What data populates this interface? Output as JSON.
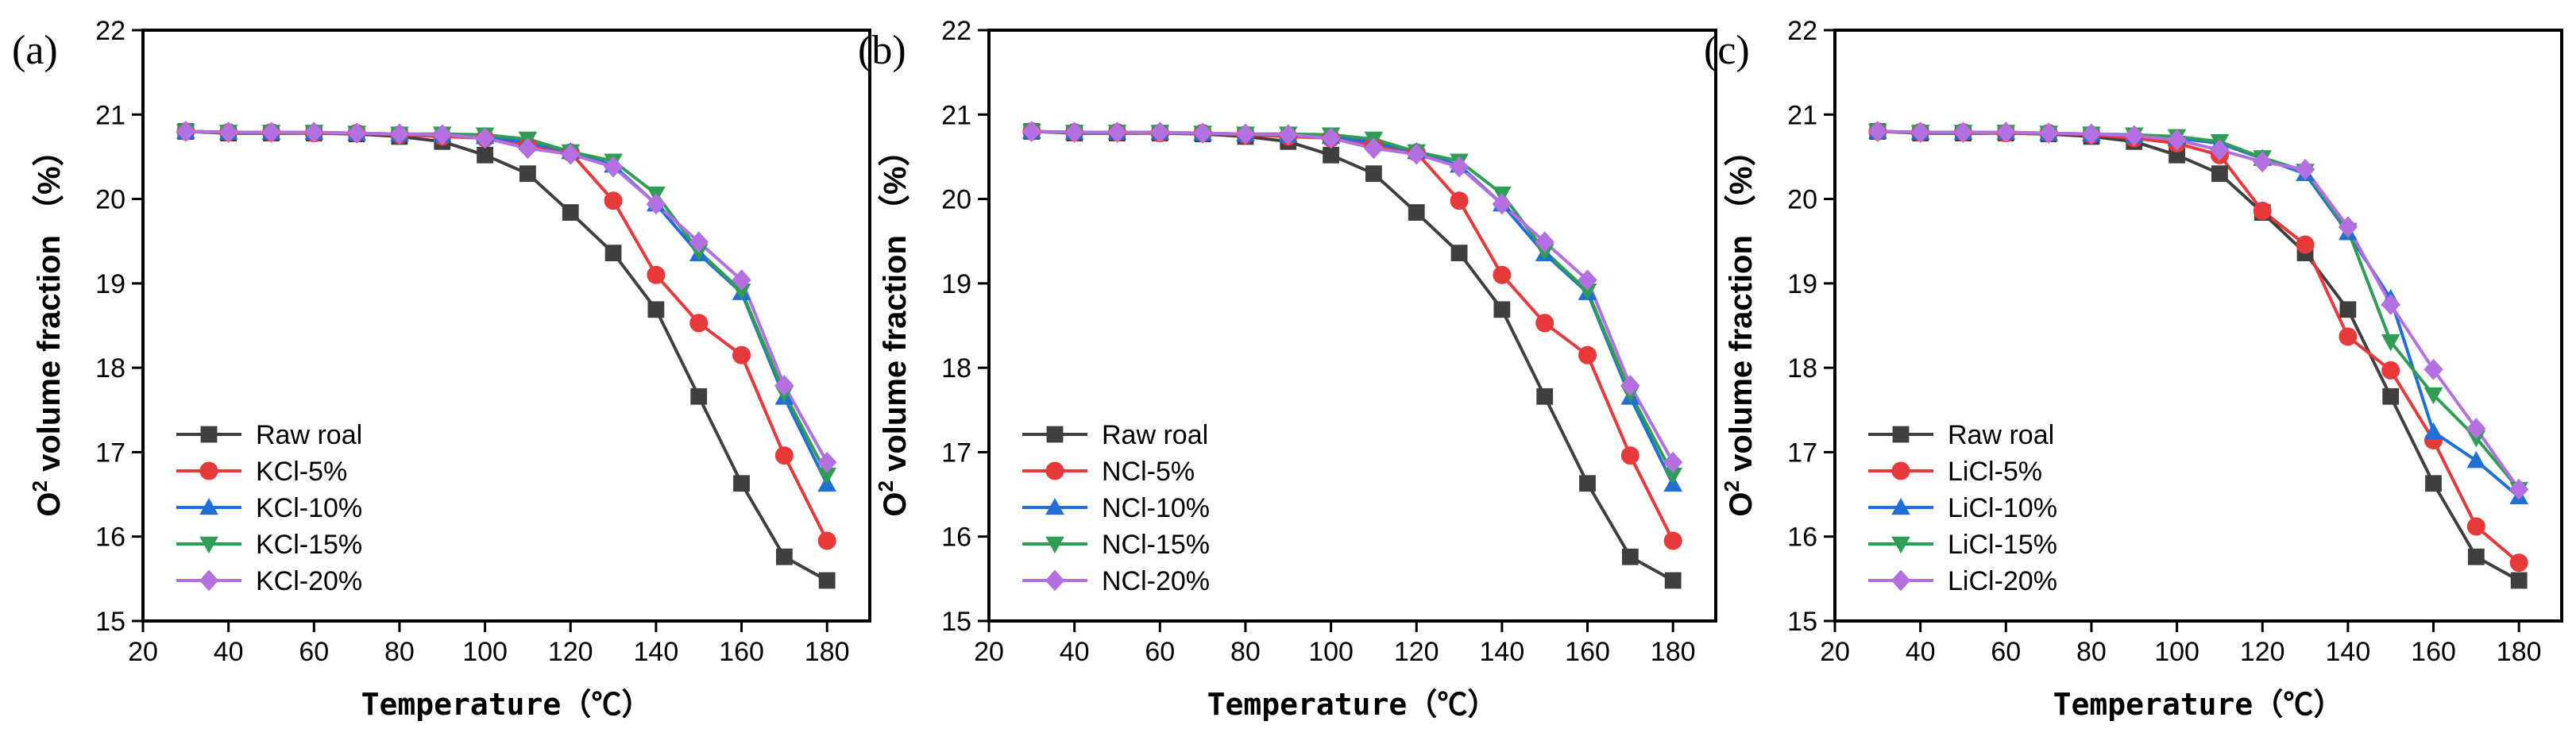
{
  "chart_data": [
    {
      "type": "line",
      "panel_label": "(a)",
      "xlabel": "Temperature（℃）",
      "ylabel_main": "O",
      "ylabel_sup": "2",
      "ylabel_rest": " volume fraction （%）",
      "xlim": [
        20,
        190
      ],
      "ylim": [
        15,
        22
      ],
      "xticks": [
        "20",
        "40",
        "60",
        "80",
        "100",
        "120",
        "140",
        "160",
        "180"
      ],
      "yticks": [
        "15",
        "16",
        "17",
        "18",
        "19",
        "20",
        "21",
        "22"
      ],
      "legend_position": "lower-left",
      "x": [
        30,
        40,
        50,
        60,
        70,
        80,
        90,
        100,
        110,
        120,
        130,
        140,
        150,
        160,
        170,
        180
      ],
      "series": [
        {
          "name": "Raw roal",
          "color": "#3f3f3f",
          "marker": "square",
          "values": [
            20.8,
            20.78,
            20.78,
            20.78,
            20.77,
            20.74,
            20.68,
            20.52,
            20.3,
            19.84,
            19.36,
            18.69,
            17.66,
            16.63,
            15.76,
            15.48
          ]
        },
        {
          "name": "KCl-5%",
          "color": "#e8393a",
          "marker": "circle",
          "values": [
            20.8,
            20.79,
            20.79,
            20.78,
            20.78,
            20.76,
            20.74,
            20.72,
            20.63,
            20.55,
            19.98,
            19.1,
            18.53,
            18.15,
            16.96,
            15.95
          ]
        },
        {
          "name": "KCl-10%",
          "color": "#1f6fd6",
          "marker": "triangle-up",
          "values": [
            20.8,
            20.79,
            20.79,
            20.79,
            20.78,
            20.77,
            20.76,
            20.74,
            20.67,
            20.56,
            20.4,
            19.94,
            19.35,
            18.89,
            17.65,
            16.62
          ]
        },
        {
          "name": "KCl-15%",
          "color": "#2e9e55",
          "marker": "triangle-down",
          "values": [
            20.8,
            20.79,
            20.79,
            20.79,
            20.78,
            20.77,
            20.77,
            20.76,
            20.71,
            20.56,
            20.45,
            20.06,
            19.38,
            18.91,
            17.7,
            16.73
          ]
        },
        {
          "name": "KCl-20%",
          "color": "#b46fe0",
          "marker": "diamond",
          "values": [
            20.8,
            20.79,
            20.79,
            20.79,
            20.78,
            20.77,
            20.76,
            20.72,
            20.6,
            20.53,
            20.38,
            19.94,
            19.49,
            19.04,
            17.79,
            16.88
          ]
        }
      ]
    },
    {
      "type": "line",
      "panel_label": "(b)",
      "xlabel": "Temperature（℃）",
      "ylabel_main": "O",
      "ylabel_sup": "2",
      "ylabel_rest": " volume fraction （%）",
      "xlim": [
        20,
        190
      ],
      "ylim": [
        15,
        22
      ],
      "xticks": [
        "20",
        "40",
        "60",
        "80",
        "100",
        "120",
        "140",
        "160",
        "180"
      ],
      "yticks": [
        "15",
        "16",
        "17",
        "18",
        "19",
        "20",
        "21",
        "22"
      ],
      "legend_position": "lower-left",
      "x": [
        30,
        40,
        50,
        60,
        70,
        80,
        90,
        100,
        110,
        120,
        130,
        140,
        150,
        160,
        170,
        180
      ],
      "series": [
        {
          "name": "Raw roal",
          "color": "#3f3f3f",
          "marker": "square",
          "values": [
            20.8,
            20.78,
            20.78,
            20.78,
            20.77,
            20.74,
            20.68,
            20.52,
            20.3,
            19.84,
            19.36,
            18.69,
            17.66,
            16.63,
            15.76,
            15.48
          ]
        },
        {
          "name": "NCl-5%",
          "color": "#e8393a",
          "marker": "circle",
          "values": [
            20.8,
            20.79,
            20.79,
            20.78,
            20.78,
            20.76,
            20.74,
            20.72,
            20.63,
            20.55,
            19.98,
            19.1,
            18.53,
            18.15,
            16.96,
            15.95
          ]
        },
        {
          "name": "NCl-10%",
          "color": "#1f6fd6",
          "marker": "triangle-up",
          "values": [
            20.8,
            20.79,
            20.79,
            20.79,
            20.78,
            20.77,
            20.76,
            20.74,
            20.67,
            20.56,
            20.4,
            19.94,
            19.35,
            18.89,
            17.65,
            16.62
          ]
        },
        {
          "name": "NCl-15%",
          "color": "#2e9e55",
          "marker": "triangle-down",
          "values": [
            20.8,
            20.79,
            20.79,
            20.79,
            20.78,
            20.77,
            20.77,
            20.76,
            20.71,
            20.56,
            20.45,
            20.06,
            19.38,
            18.91,
            17.7,
            16.73
          ]
        },
        {
          "name": "NCl-20%",
          "color": "#b46fe0",
          "marker": "diamond",
          "values": [
            20.8,
            20.79,
            20.79,
            20.79,
            20.78,
            20.77,
            20.76,
            20.72,
            20.6,
            20.53,
            20.38,
            19.94,
            19.49,
            19.04,
            17.79,
            16.88
          ]
        }
      ]
    },
    {
      "type": "line",
      "panel_label": "(c)",
      "xlabel": "Temperature（℃）",
      "ylabel_main": "O",
      "ylabel_sup": "2",
      "ylabel_rest": " volume fraction （%）",
      "xlim": [
        20,
        190
      ],
      "ylim": [
        15,
        22
      ],
      "xticks": [
        "20",
        "40",
        "60",
        "80",
        "100",
        "120",
        "140",
        "160",
        "180"
      ],
      "yticks": [
        "15",
        "16",
        "17",
        "18",
        "19",
        "20",
        "21",
        "22"
      ],
      "legend_position": "lower-left",
      "x": [
        30,
        40,
        50,
        60,
        70,
        80,
        90,
        100,
        110,
        120,
        130,
        140,
        150,
        160,
        170,
        180
      ],
      "series": [
        {
          "name": "Raw roal",
          "color": "#3f3f3f",
          "marker": "square",
          "values": [
            20.8,
            20.78,
            20.78,
            20.78,
            20.77,
            20.74,
            20.68,
            20.52,
            20.3,
            19.84,
            19.36,
            18.69,
            17.66,
            16.63,
            15.76,
            15.48
          ]
        },
        {
          "name": "LiCl-5%",
          "color": "#e8393a",
          "marker": "circle",
          "values": [
            20.8,
            20.79,
            20.79,
            20.78,
            20.78,
            20.76,
            20.72,
            20.66,
            20.52,
            19.86,
            19.46,
            18.37,
            17.97,
            17.14,
            16.12,
            15.69
          ]
        },
        {
          "name": "LiCl-10%",
          "color": "#1f6fd6",
          "marker": "triangle-up",
          "values": [
            20.8,
            20.79,
            20.79,
            20.79,
            20.78,
            20.77,
            20.75,
            20.72,
            20.66,
            20.48,
            20.3,
            19.6,
            18.82,
            17.24,
            16.9,
            16.47
          ]
        },
        {
          "name": "LiCl-15%",
          "color": "#2e9e55",
          "marker": "triangle-down",
          "values": [
            20.8,
            20.79,
            20.79,
            20.79,
            20.78,
            20.77,
            20.76,
            20.74,
            20.68,
            20.49,
            20.33,
            19.63,
            18.31,
            17.68,
            17.17,
            16.56
          ]
        },
        {
          "name": "LiCl-20%",
          "color": "#b46fe0",
          "marker": "diamond",
          "values": [
            20.8,
            20.79,
            20.79,
            20.79,
            20.78,
            20.77,
            20.75,
            20.7,
            20.58,
            20.44,
            20.35,
            19.67,
            18.75,
            17.98,
            17.28,
            16.56
          ]
        }
      ]
    }
  ]
}
